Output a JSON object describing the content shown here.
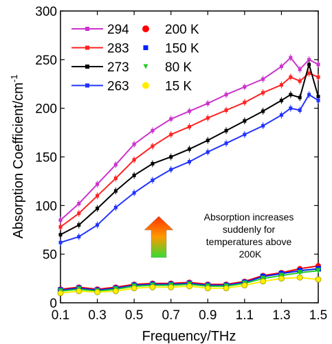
{
  "chart_data": {
    "type": "line",
    "xlabel": "Frequency/THz",
    "ylabel": "Absorption Coefficient/cm",
    "ylabel_superscript": "-1",
    "xlim": [
      0.1,
      1.5
    ],
    "ylim": [
      0,
      300
    ],
    "xticks": [
      "0.1",
      "0.3",
      "0.5",
      "0.7",
      "0.9",
      "1.1",
      "1.3",
      "1.5"
    ],
    "yticks": [
      "0",
      "50",
      "100",
      "150",
      "200",
      "250",
      "300"
    ],
    "grid": false,
    "legend_position": "top-left",
    "annotation": {
      "lines": [
        "Absorption increases",
        "suddenly for",
        "temperatures above",
        "200K"
      ],
      "arrow_colors": [
        "#ff3300",
        "#ff9900",
        "#33dd33"
      ]
    },
    "series": [
      {
        "name": "294",
        "color": "#cc33cc",
        "marker": "square",
        "x": [
          0.1,
          0.2,
          0.3,
          0.4,
          0.5,
          0.6,
          0.7,
          0.8,
          0.9,
          1.0,
          1.1,
          1.2,
          1.3,
          1.35,
          1.4,
          1.45,
          1.5
        ],
        "y": [
          85,
          102,
          122,
          142,
          163,
          177,
          189,
          197,
          205,
          214,
          222,
          230,
          243,
          252,
          240,
          250,
          245
        ]
      },
      {
        "name": "283",
        "color": "#ff2222",
        "marker": "square",
        "x": [
          0.1,
          0.2,
          0.3,
          0.4,
          0.5,
          0.6,
          0.7,
          0.8,
          0.9,
          1.0,
          1.1,
          1.2,
          1.3,
          1.35,
          1.4,
          1.45,
          1.5
        ],
        "y": [
          78,
          92,
          110,
          128,
          147,
          161,
          173,
          181,
          190,
          198,
          206,
          216,
          224,
          232,
          228,
          236,
          232
        ]
      },
      {
        "name": "273",
        "color": "#000000",
        "marker": "square",
        "x": [
          0.1,
          0.2,
          0.3,
          0.4,
          0.5,
          0.6,
          0.7,
          0.8,
          0.9,
          1.0,
          1.1,
          1.2,
          1.3,
          1.35,
          1.4,
          1.45,
          1.5
        ],
        "y": [
          70,
          80,
          97,
          115,
          131,
          143,
          150,
          158,
          167,
          177,
          187,
          197,
          208,
          214,
          211,
          245,
          212
        ]
      },
      {
        "name": "263",
        "color": "#2233ff",
        "marker": "square",
        "x": [
          0.1,
          0.2,
          0.3,
          0.4,
          0.5,
          0.6,
          0.7,
          0.8,
          0.9,
          1.0,
          1.1,
          1.2,
          1.3,
          1.35,
          1.4,
          1.45,
          1.5
        ],
        "y": [
          62,
          68,
          80,
          98,
          113,
          126,
          137,
          145,
          155,
          164,
          173,
          182,
          193,
          200,
          198,
          214,
          208
        ]
      },
      {
        "name": "200 K",
        "color": "#ff0000",
        "marker": "circle",
        "x": [
          0.1,
          0.2,
          0.3,
          0.4,
          0.5,
          0.6,
          0.7,
          0.8,
          0.9,
          1.0,
          1.1,
          1.2,
          1.3,
          1.4,
          1.5
        ],
        "y": [
          14,
          16,
          14,
          16,
          19,
          20,
          20,
          21,
          19,
          19,
          22,
          28,
          31,
          35,
          38
        ]
      },
      {
        "name": "150 K",
        "color": "#0022ff",
        "marker": "square",
        "x": [
          0.1,
          0.2,
          0.3,
          0.4,
          0.5,
          0.6,
          0.7,
          0.8,
          0.9,
          1.0,
          1.1,
          1.2,
          1.3,
          1.4,
          1.5
        ],
        "y": [
          13,
          15,
          13,
          15,
          18,
          19,
          19,
          20,
          18,
          18,
          21,
          27,
          30,
          33,
          35
        ]
      },
      {
        "name": "80 K",
        "color": "#22cc22",
        "marker": "triangle",
        "x": [
          0.1,
          0.2,
          0.3,
          0.4,
          0.5,
          0.6,
          0.7,
          0.8,
          0.9,
          1.0,
          1.1,
          1.2,
          1.3,
          1.4,
          1.5
        ],
        "y": [
          12,
          14,
          12,
          14,
          17,
          18,
          18,
          19,
          17,
          17,
          20,
          25,
          28,
          31,
          33
        ]
      },
      {
        "name": "15 K",
        "color": "#ffee00",
        "marker": "circle",
        "x": [
          0.1,
          0.2,
          0.3,
          0.4,
          0.5,
          0.6,
          0.7,
          0.8,
          0.9,
          1.0,
          1.1,
          1.2,
          1.3,
          1.4,
          1.5
        ],
        "y": [
          10,
          12,
          11,
          12,
          15,
          16,
          16,
          17,
          15,
          15,
          18,
          22,
          25,
          26,
          24
        ]
      }
    ]
  }
}
